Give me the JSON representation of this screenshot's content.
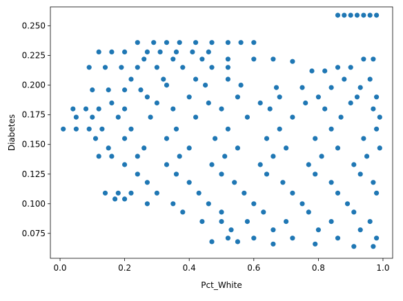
{
  "chart_data": {
    "type": "scatter",
    "title": "",
    "xlabel": "Pct_White",
    "ylabel": "Diabetes",
    "xlim": [
      -0.03,
      1.03
    ],
    "ylim": [
      0.054,
      0.266
    ],
    "x_ticks": [
      0.0,
      0.2,
      0.4,
      0.6,
      0.8,
      1.0
    ],
    "x_tick_labels": [
      "0.0",
      "0.2",
      "0.4",
      "0.6",
      "0.8",
      "1.0"
    ],
    "y_ticks": [
      0.075,
      0.1,
      0.125,
      0.15,
      0.175,
      0.2,
      0.225,
      0.25
    ],
    "y_tick_labels": [
      "0.075",
      "0.100",
      "0.125",
      "0.150",
      "0.175",
      "0.200",
      "0.225",
      "0.250"
    ],
    "grid": false,
    "legend": "none",
    "marker_color": "#1f77b4",
    "marker_edge_color": "#ffffff",
    "series": [
      {
        "values_note": "",
        "points": [
          {
            "x": 0.86,
            "y": 0.259
          },
          {
            "x": 0.88,
            "y": 0.259
          },
          {
            "x": 0.9,
            "y": 0.259
          },
          {
            "x": 0.92,
            "y": 0.259
          },
          {
            "x": 0.94,
            "y": 0.259
          },
          {
            "x": 0.96,
            "y": 0.259
          },
          {
            "x": 0.98,
            "y": 0.259
          },
          {
            "x": 0.24,
            "y": 0.236
          },
          {
            "x": 0.29,
            "y": 0.236
          },
          {
            "x": 0.33,
            "y": 0.236
          },
          {
            "x": 0.37,
            "y": 0.236
          },
          {
            "x": 0.42,
            "y": 0.236
          },
          {
            "x": 0.47,
            "y": 0.236
          },
          {
            "x": 0.52,
            "y": 0.236
          },
          {
            "x": 0.56,
            "y": 0.236
          },
          {
            "x": 0.6,
            "y": 0.236
          },
          {
            "x": 0.12,
            "y": 0.228
          },
          {
            "x": 0.16,
            "y": 0.228
          },
          {
            "x": 0.2,
            "y": 0.228
          },
          {
            "x": 0.27,
            "y": 0.228
          },
          {
            "x": 0.31,
            "y": 0.228
          },
          {
            "x": 0.36,
            "y": 0.228
          },
          {
            "x": 0.41,
            "y": 0.228
          },
          {
            "x": 0.46,
            "y": 0.228
          },
          {
            "x": 0.26,
            "y": 0.222
          },
          {
            "x": 0.35,
            "y": 0.222
          },
          {
            "x": 0.44,
            "y": 0.222
          },
          {
            "x": 0.52,
            "y": 0.222
          },
          {
            "x": 0.6,
            "y": 0.222
          },
          {
            "x": 0.66,
            "y": 0.222
          },
          {
            "x": 0.72,
            "y": 0.22
          },
          {
            "x": 0.09,
            "y": 0.215
          },
          {
            "x": 0.14,
            "y": 0.215
          },
          {
            "x": 0.19,
            "y": 0.215
          },
          {
            "x": 0.24,
            "y": 0.215
          },
          {
            "x": 0.3,
            "y": 0.215
          },
          {
            "x": 0.38,
            "y": 0.215
          },
          {
            "x": 0.47,
            "y": 0.215
          },
          {
            "x": 0.52,
            "y": 0.215
          },
          {
            "x": 0.78,
            "y": 0.212
          },
          {
            "x": 0.82,
            "y": 0.212
          },
          {
            "x": 0.86,
            "y": 0.215
          },
          {
            "x": 0.9,
            "y": 0.215
          },
          {
            "x": 0.94,
            "y": 0.222
          },
          {
            "x": 0.97,
            "y": 0.222
          },
          {
            "x": 0.22,
            "y": 0.205
          },
          {
            "x": 0.32,
            "y": 0.205
          },
          {
            "x": 0.42,
            "y": 0.205
          },
          {
            "x": 0.52,
            "y": 0.205
          },
          {
            "x": 0.88,
            "y": 0.205
          },
          {
            "x": 0.96,
            "y": 0.205
          },
          {
            "x": 0.1,
            "y": 0.196
          },
          {
            "x": 0.15,
            "y": 0.196
          },
          {
            "x": 0.2,
            "y": 0.196
          },
          {
            "x": 0.25,
            "y": 0.196
          },
          {
            "x": 0.33,
            "y": 0.2
          },
          {
            "x": 0.45,
            "y": 0.2
          },
          {
            "x": 0.56,
            "y": 0.2
          },
          {
            "x": 0.67,
            "y": 0.198
          },
          {
            "x": 0.75,
            "y": 0.198
          },
          {
            "x": 0.84,
            "y": 0.198
          },
          {
            "x": 0.93,
            "y": 0.198
          },
          {
            "x": 0.27,
            "y": 0.19
          },
          {
            "x": 0.4,
            "y": 0.19
          },
          {
            "x": 0.55,
            "y": 0.19
          },
          {
            "x": 0.68,
            "y": 0.19
          },
          {
            "x": 0.8,
            "y": 0.19
          },
          {
            "x": 0.92,
            "y": 0.19
          },
          {
            "x": 0.98,
            "y": 0.19
          },
          {
            "x": 0.16,
            "y": 0.185
          },
          {
            "x": 0.3,
            "y": 0.185
          },
          {
            "x": 0.46,
            "y": 0.185
          },
          {
            "x": 0.62,
            "y": 0.185
          },
          {
            "x": 0.76,
            "y": 0.185
          },
          {
            "x": 0.9,
            "y": 0.185
          },
          {
            "x": 0.04,
            "y": 0.18
          },
          {
            "x": 0.08,
            "y": 0.18
          },
          {
            "x": 0.12,
            "y": 0.18
          },
          {
            "x": 0.2,
            "y": 0.18
          },
          {
            "x": 0.35,
            "y": 0.18
          },
          {
            "x": 0.5,
            "y": 0.18
          },
          {
            "x": 0.65,
            "y": 0.18
          },
          {
            "x": 0.82,
            "y": 0.18
          },
          {
            "x": 0.97,
            "y": 0.18
          },
          {
            "x": 0.05,
            "y": 0.173
          },
          {
            "x": 0.1,
            "y": 0.173
          },
          {
            "x": 0.18,
            "y": 0.173
          },
          {
            "x": 0.28,
            "y": 0.173
          },
          {
            "x": 0.42,
            "y": 0.173
          },
          {
            "x": 0.58,
            "y": 0.173
          },
          {
            "x": 0.72,
            "y": 0.173
          },
          {
            "x": 0.87,
            "y": 0.173
          },
          {
            "x": 0.99,
            "y": 0.173
          },
          {
            "x": 0.01,
            "y": 0.163
          },
          {
            "x": 0.05,
            "y": 0.163
          },
          {
            "x": 0.09,
            "y": 0.163
          },
          {
            "x": 0.13,
            "y": 0.163
          },
          {
            "x": 0.22,
            "y": 0.163
          },
          {
            "x": 0.36,
            "y": 0.163
          },
          {
            "x": 0.52,
            "y": 0.163
          },
          {
            "x": 0.68,
            "y": 0.163
          },
          {
            "x": 0.84,
            "y": 0.163
          },
          {
            "x": 0.98,
            "y": 0.163
          },
          {
            "x": 0.11,
            "y": 0.155
          },
          {
            "x": 0.2,
            "y": 0.155
          },
          {
            "x": 0.33,
            "y": 0.155
          },
          {
            "x": 0.48,
            "y": 0.155
          },
          {
            "x": 0.64,
            "y": 0.155
          },
          {
            "x": 0.79,
            "y": 0.155
          },
          {
            "x": 0.94,
            "y": 0.155
          },
          {
            "x": 0.15,
            "y": 0.147
          },
          {
            "x": 0.26,
            "y": 0.147
          },
          {
            "x": 0.4,
            "y": 0.147
          },
          {
            "x": 0.55,
            "y": 0.147
          },
          {
            "x": 0.7,
            "y": 0.147
          },
          {
            "x": 0.86,
            "y": 0.147
          },
          {
            "x": 0.99,
            "y": 0.147
          },
          {
            "x": 0.12,
            "y": 0.14
          },
          {
            "x": 0.16,
            "y": 0.14
          },
          {
            "x": 0.24,
            "y": 0.14
          },
          {
            "x": 0.37,
            "y": 0.14
          },
          {
            "x": 0.51,
            "y": 0.14
          },
          {
            "x": 0.66,
            "y": 0.14
          },
          {
            "x": 0.81,
            "y": 0.14
          },
          {
            "x": 0.95,
            "y": 0.14
          },
          {
            "x": 0.2,
            "y": 0.133
          },
          {
            "x": 0.33,
            "y": 0.133
          },
          {
            "x": 0.47,
            "y": 0.133
          },
          {
            "x": 0.62,
            "y": 0.133
          },
          {
            "x": 0.77,
            "y": 0.133
          },
          {
            "x": 0.91,
            "y": 0.133
          },
          {
            "x": 0.24,
            "y": 0.125
          },
          {
            "x": 0.36,
            "y": 0.125
          },
          {
            "x": 0.5,
            "y": 0.125
          },
          {
            "x": 0.64,
            "y": 0.125
          },
          {
            "x": 0.79,
            "y": 0.125
          },
          {
            "x": 0.93,
            "y": 0.125
          },
          {
            "x": 0.27,
            "y": 0.118
          },
          {
            "x": 0.4,
            "y": 0.118
          },
          {
            "x": 0.54,
            "y": 0.118
          },
          {
            "x": 0.69,
            "y": 0.118
          },
          {
            "x": 0.84,
            "y": 0.118
          },
          {
            "x": 0.97,
            "y": 0.118
          },
          {
            "x": 0.14,
            "y": 0.109
          },
          {
            "x": 0.18,
            "y": 0.109
          },
          {
            "x": 0.22,
            "y": 0.109
          },
          {
            "x": 0.3,
            "y": 0.109
          },
          {
            "x": 0.43,
            "y": 0.109
          },
          {
            "x": 0.57,
            "y": 0.109
          },
          {
            "x": 0.72,
            "y": 0.109
          },
          {
            "x": 0.86,
            "y": 0.109
          },
          {
            "x": 0.98,
            "y": 0.109
          },
          {
            "x": 0.17,
            "y": 0.104
          },
          {
            "x": 0.2,
            "y": 0.104
          },
          {
            "x": 0.27,
            "y": 0.1
          },
          {
            "x": 0.35,
            "y": 0.1
          },
          {
            "x": 0.46,
            "y": 0.1
          },
          {
            "x": 0.6,
            "y": 0.1
          },
          {
            "x": 0.75,
            "y": 0.1
          },
          {
            "x": 0.89,
            "y": 0.1
          },
          {
            "x": 0.38,
            "y": 0.093
          },
          {
            "x": 0.5,
            "y": 0.093
          },
          {
            "x": 0.63,
            "y": 0.093
          },
          {
            "x": 0.77,
            "y": 0.093
          },
          {
            "x": 0.91,
            "y": 0.093
          },
          {
            "x": 0.44,
            "y": 0.085
          },
          {
            "x": 0.5,
            "y": 0.085
          },
          {
            "x": 0.58,
            "y": 0.085
          },
          {
            "x": 0.7,
            "y": 0.085
          },
          {
            "x": 0.84,
            "y": 0.085
          },
          {
            "x": 0.96,
            "y": 0.085
          },
          {
            "x": 0.53,
            "y": 0.078
          },
          {
            "x": 0.66,
            "y": 0.078
          },
          {
            "x": 0.8,
            "y": 0.078
          },
          {
            "x": 0.93,
            "y": 0.078
          },
          {
            "x": 0.52,
            "y": 0.071
          },
          {
            "x": 0.6,
            "y": 0.071
          },
          {
            "x": 0.72,
            "y": 0.071
          },
          {
            "x": 0.86,
            "y": 0.071
          },
          {
            "x": 0.98,
            "y": 0.071
          },
          {
            "x": 0.47,
            "y": 0.068
          },
          {
            "x": 0.55,
            "y": 0.068
          },
          {
            "x": 0.66,
            "y": 0.066
          },
          {
            "x": 0.79,
            "y": 0.066
          },
          {
            "x": 0.91,
            "y": 0.064
          },
          {
            "x": 0.97,
            "y": 0.064
          }
        ]
      }
    ]
  }
}
